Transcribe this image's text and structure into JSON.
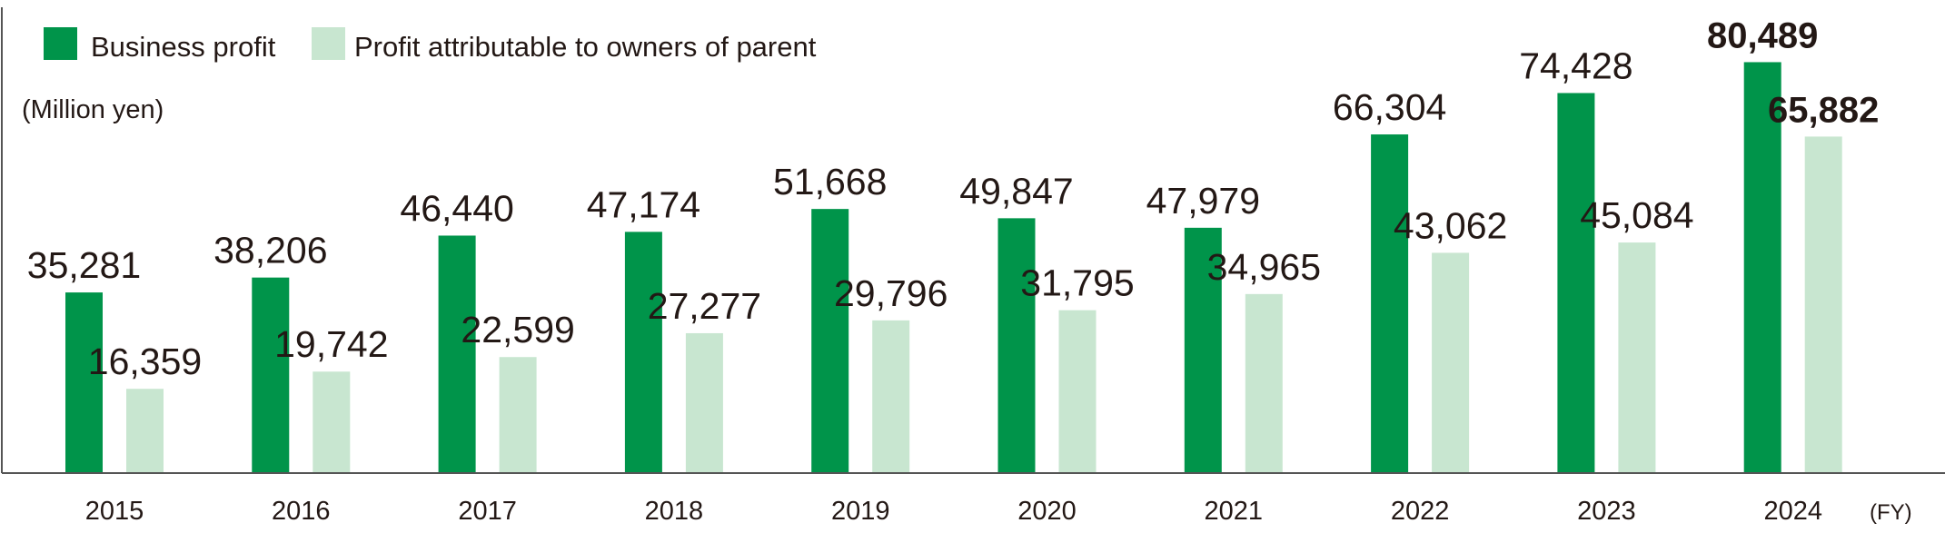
{
  "chart_data": {
    "type": "bar",
    "title": "",
    "unit_label": "(Million yen)",
    "xlabel": "(FY)",
    "ylabel": "",
    "ylim": [
      0,
      93000
    ],
    "grid": false,
    "legend_position": "top-left",
    "categories": [
      "2015",
      "2016",
      "2017",
      "2018",
      "2019",
      "2020",
      "2021",
      "2022",
      "2023",
      "2024"
    ],
    "series": [
      {
        "name": "Business profit",
        "color": "#00944a",
        "values": [
          35281,
          38206,
          46440,
          47174,
          51668,
          49847,
          47979,
          66304,
          74428,
          80489
        ],
        "labels": [
          "35,281",
          "38,206",
          "46,440",
          "47,174",
          "51,668",
          "49,847",
          "47,979",
          "66,304",
          "74,428",
          "80,489"
        ]
      },
      {
        "name": "Profit attributable to owners of parent",
        "color": "#c8e6d0",
        "values": [
          16359,
          19742,
          22599,
          27277,
          29796,
          31795,
          34965,
          43062,
          45084,
          65882
        ],
        "labels": [
          "16,359",
          "19,742",
          "22,599",
          "27,277",
          "29,796",
          "31,795",
          "34,965",
          "43,062",
          "45,084",
          "65,882"
        ]
      }
    ],
    "highlight_category": "2024"
  }
}
